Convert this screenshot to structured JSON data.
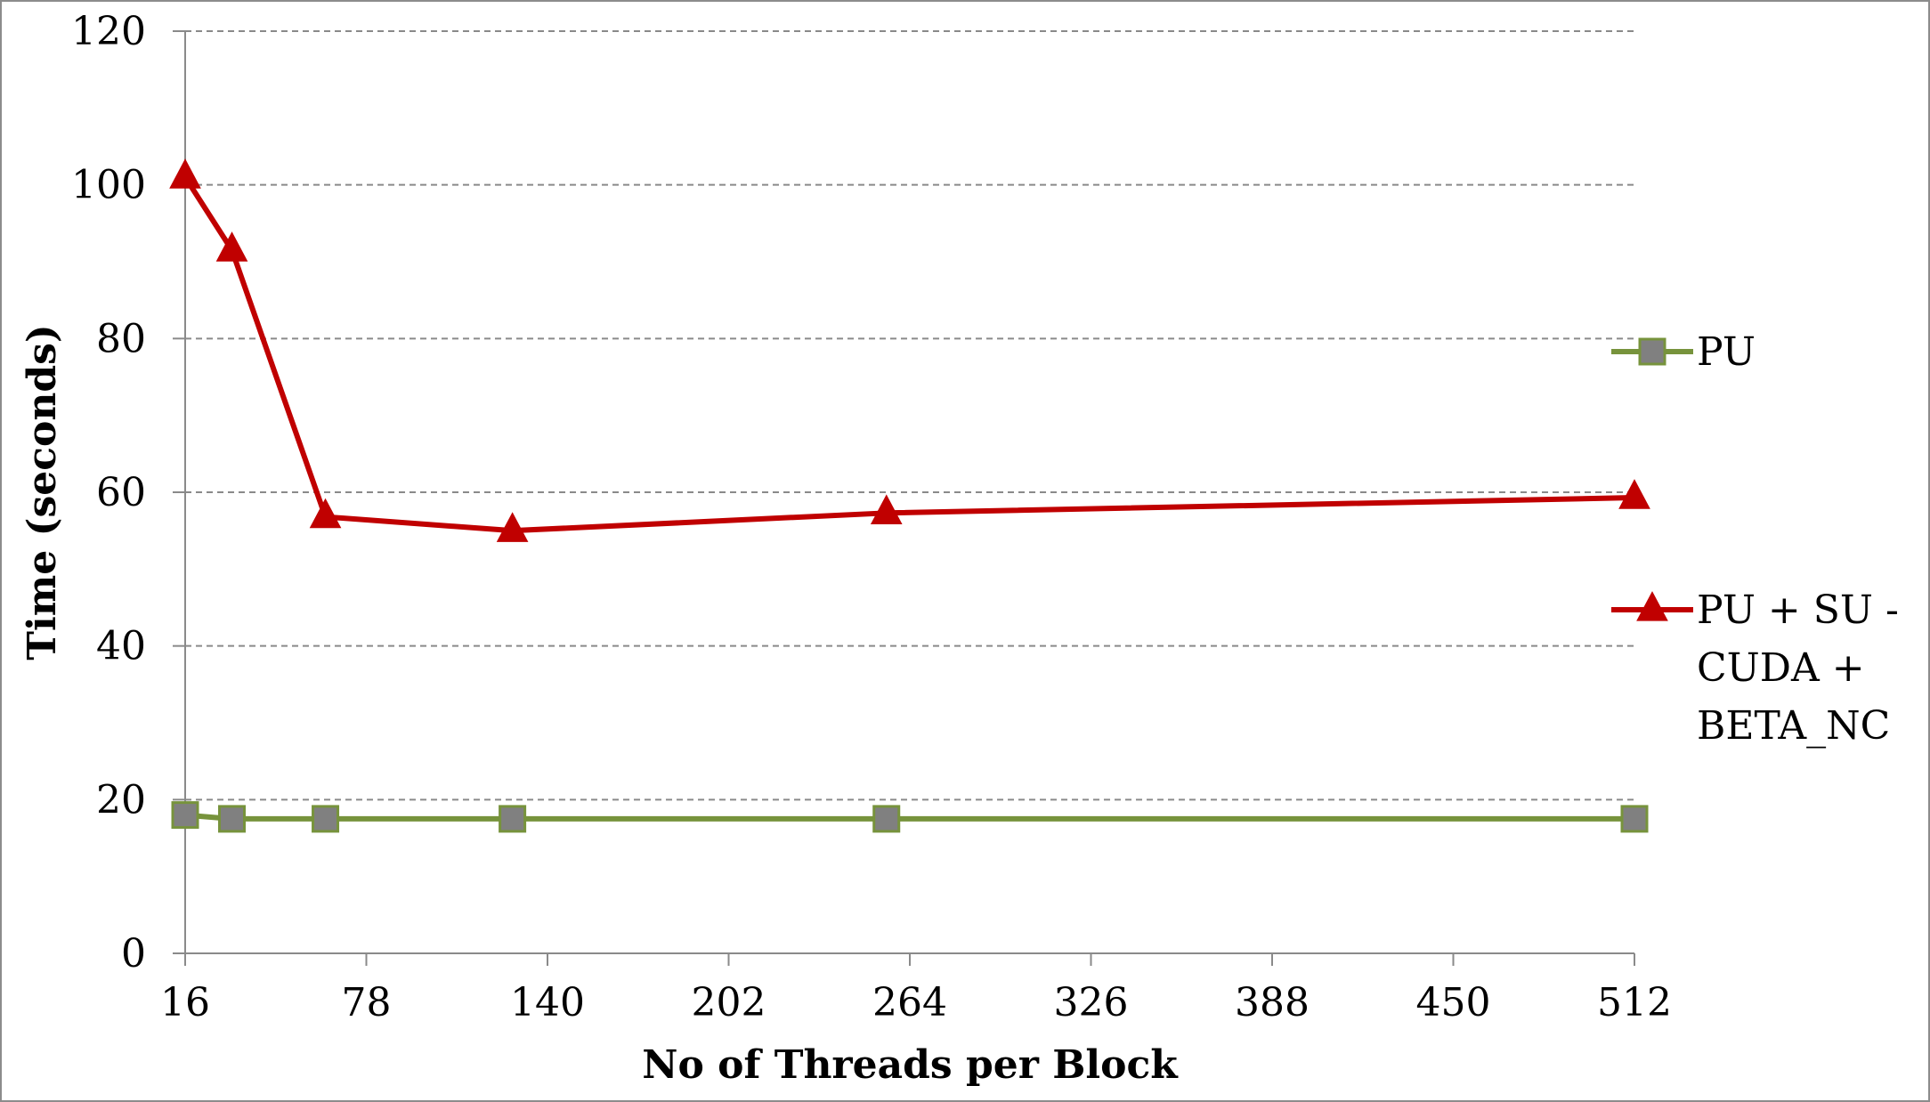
{
  "chart_data": {
    "type": "line",
    "xlabel": "No of Threads per Block",
    "ylabel": "Time (seconds)",
    "xlim": [
      16,
      512
    ],
    "ylim": [
      0,
      120
    ],
    "x_ticks": [
      16,
      78,
      140,
      202,
      264,
      326,
      388,
      450,
      512
    ],
    "y_ticks": [
      0,
      20,
      40,
      60,
      80,
      100,
      120
    ],
    "grid": "horizontal dashed",
    "legend_position": "right",
    "series": [
      {
        "name": "PU",
        "color": "#77933c",
        "marker": "square",
        "marker_color": "#808080",
        "x": [
          16,
          32,
          64,
          128,
          256,
          512
        ],
        "y": [
          18.0,
          17.5,
          17.5,
          17.5,
          17.5,
          17.5
        ]
      },
      {
        "name": "PU + SU - CUDA + BETA_NC",
        "color": "#c00000",
        "marker": "triangle",
        "marker_color": "#c00000",
        "x": [
          16,
          32,
          64,
          128,
          256,
          512
        ],
        "y": [
          101,
          91.5,
          56.8,
          55.0,
          57.3,
          59.3
        ]
      }
    ]
  }
}
